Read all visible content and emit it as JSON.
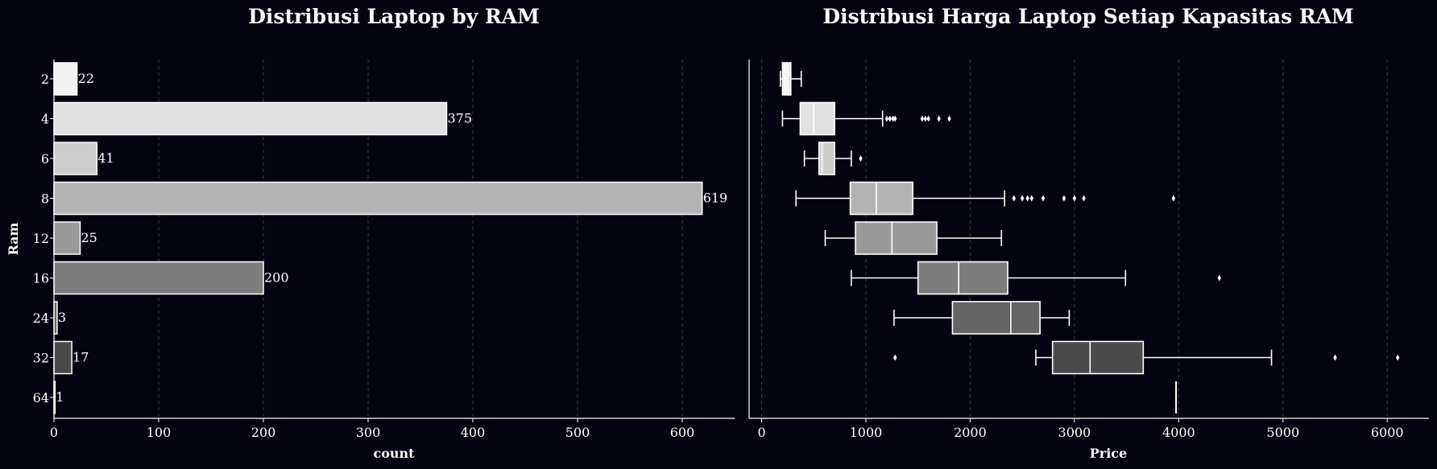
{
  "chart_data": [
    {
      "type": "bar",
      "orientation": "horizontal",
      "title": "Distribusi Laptop by RAM",
      "xlabel": "count",
      "ylabel": "Ram",
      "categories": [
        "2",
        "4",
        "6",
        "8",
        "12",
        "16",
        "24",
        "32",
        "64"
      ],
      "values": [
        22,
        375,
        41,
        619,
        25,
        200,
        3,
        17,
        1
      ],
      "xlim": [
        0,
        650
      ],
      "xticks": [
        0,
        100,
        200,
        300,
        400,
        500,
        600
      ],
      "grid": "x-dashed",
      "colors": [
        "#f2f2f2",
        "#e1e1e1",
        "#cccccc",
        "#b3b3b3",
        "#999999",
        "#7d7d7d",
        "#646464",
        "#4a4a4a",
        "#2e2e2e"
      ]
    },
    {
      "type": "box",
      "orientation": "horizontal",
      "title": "Distribusi Harga Laptop Setiap Kapasitas RAM",
      "xlabel": "Price",
      "categories": [
        "2",
        "4",
        "6",
        "8",
        "12",
        "16",
        "24",
        "32",
        "64"
      ],
      "xlim": [
        -120,
        6400
      ],
      "xticks": [
        0,
        1000,
        2000,
        3000,
        4000,
        5000,
        6000
      ],
      "grid": "x-dashed",
      "boxes": [
        {
          "ram": "2",
          "whislo": 180,
          "q1": 200,
          "med": 230,
          "q3": 280,
          "whishi": 380,
          "fliers": []
        },
        {
          "ram": "4",
          "whislo": 200,
          "q1": 370,
          "med": 500,
          "q3": 700,
          "whishi": 1160,
          "fliers": [
            1200,
            1230,
            1260,
            1280,
            1540,
            1570,
            1600,
            1700,
            1800
          ]
        },
        {
          "ram": "6",
          "whislo": 410,
          "q1": 550,
          "med": 580,
          "q3": 700,
          "whishi": 860,
          "fliers": [
            950
          ]
        },
        {
          "ram": "8",
          "whislo": 330,
          "q1": 850,
          "med": 1100,
          "q3": 1450,
          "whishi": 2330,
          "fliers": [
            2420,
            2500,
            2550,
            2590,
            2700,
            2900,
            3000,
            3090,
            3950
          ]
        },
        {
          "ram": "12",
          "whislo": 610,
          "q1": 900,
          "med": 1250,
          "q3": 1680,
          "whishi": 2300,
          "fliers": []
        },
        {
          "ram": "16",
          "whislo": 860,
          "q1": 1500,
          "med": 1890,
          "q3": 2360,
          "whishi": 3490,
          "fliers": [
            4390
          ]
        },
        {
          "ram": "24",
          "whislo": 1270,
          "q1": 1830,
          "med": 2390,
          "q3": 2670,
          "whishi": 2950,
          "fliers": []
        },
        {
          "ram": "32",
          "whislo": 2630,
          "q1": 2790,
          "med": 3150,
          "q3": 3660,
          "whishi": 4890,
          "fliers": [
            1280,
            5500,
            6100
          ]
        },
        {
          "ram": "64",
          "whislo": 3975,
          "q1": 3975,
          "med": 3975,
          "q3": 3975,
          "whishi": 3975,
          "fliers": []
        }
      ],
      "colors": [
        "#f2f2f2",
        "#e1e1e1",
        "#cccccc",
        "#b3b3b3",
        "#999999",
        "#7d7d7d",
        "#646464",
        "#4a4a4a",
        "#2e2e2e"
      ]
    }
  ]
}
